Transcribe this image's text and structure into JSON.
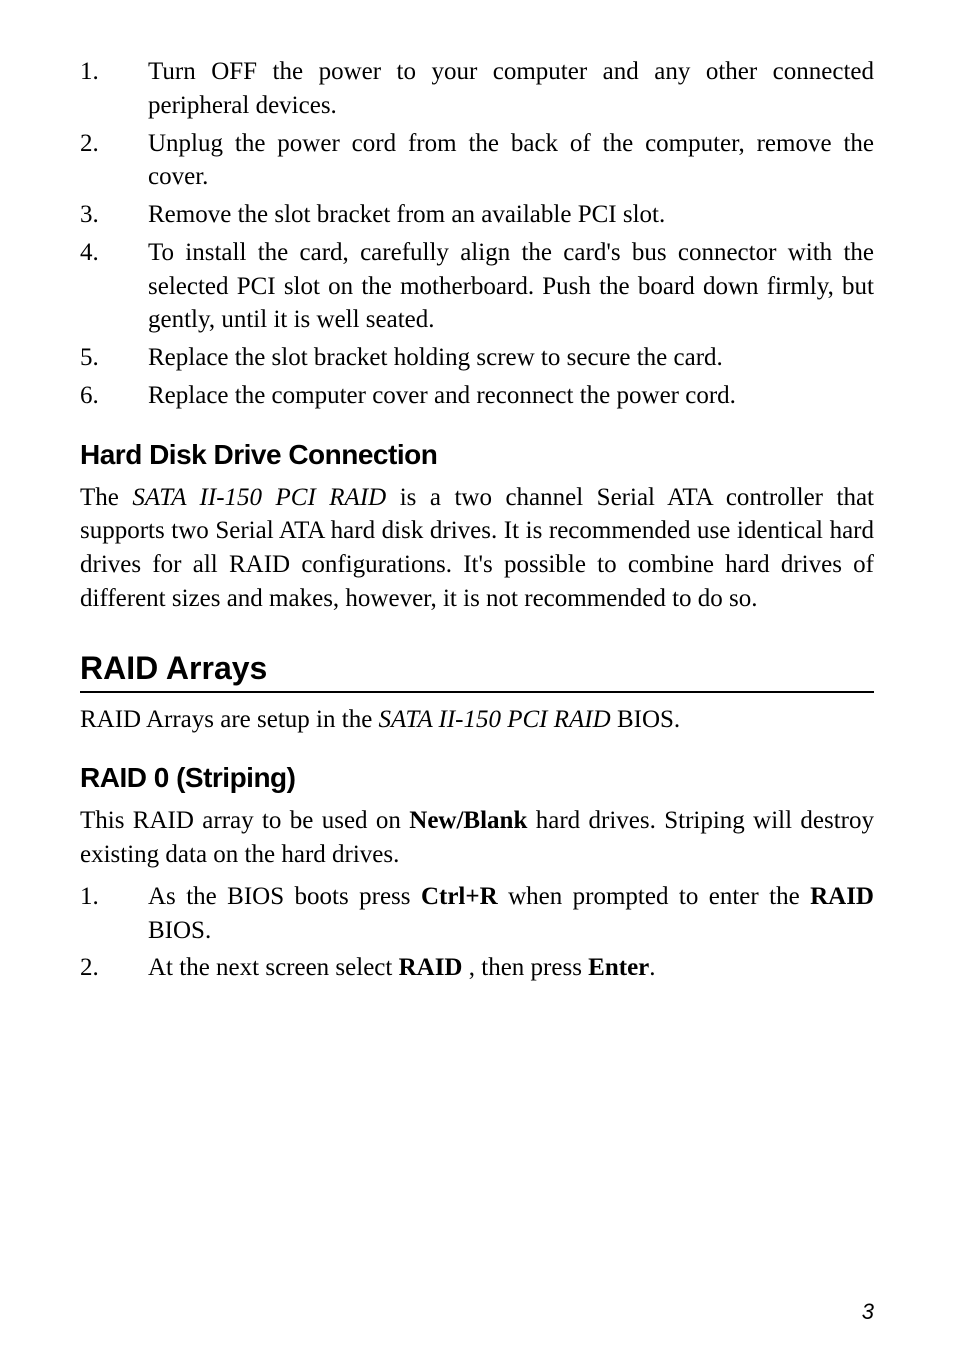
{
  "page": {
    "number": "3",
    "background_color": "#ffffff",
    "text_color": "#000000"
  },
  "install_steps": [
    {
      "n": "1.",
      "text": "Turn OFF the power to your computer and any other connected peripheral devices."
    },
    {
      "n": "2.",
      "text": "Unplug the power cord from the back of the computer, remove the cover."
    },
    {
      "n": "3.",
      "text": "Remove the slot bracket from an available PCI  slot."
    },
    {
      "n": "4.",
      "text": "To install the card, carefully align the card's bus connector with the selected PCI slot on the motherboard. Push the board down firmly, but gently, until it is well seated."
    },
    {
      "n": "5.",
      "text": "Replace the slot bracket holding screw to secure the card."
    },
    {
      "n": "6.",
      "text": "Replace the computer cover and reconnect the power cord."
    }
  ],
  "hdd_section": {
    "heading": "Hard Disk Drive Connection",
    "p_pre": "The ",
    "p_product": "SATA II-150 PCI RAID",
    "p_post": " is a two channel Serial ATA controller that supports two Serial ATA hard disk drives. It is recommended use identical hard drives for all RAID configurations.  It's possible to combine hard drives of different sizes and makes, however, it is not recommended to do so."
  },
  "raid_arrays": {
    "heading": "RAID  Arrays",
    "p_pre": "RAID Arrays are setup in the ",
    "p_product": "SATA II-150 PCI RAID",
    "p_post": " BIOS."
  },
  "raid0": {
    "heading": "RAID 0 (Striping)",
    "p_pre": "This RAID array to be used on ",
    "p_bold": "New/Blank",
    "p_post": " hard drives. Striping will destroy existing data on the hard drives.",
    "steps": [
      {
        "n": "1.",
        "parts": [
          {
            "t": "As the BIOS boots press "
          },
          {
            "t": "Ctrl+R",
            "bold": true
          },
          {
            "t": " when prompted to enter the "
          },
          {
            "t": "RAID",
            "bold": true
          },
          {
            "t": " BIOS."
          }
        ]
      },
      {
        "n": "2.",
        "parts": [
          {
            "t": "At the  next  screen  select "
          },
          {
            "t": "RAID",
            "bold": true
          },
          {
            "t": " , then press "
          },
          {
            "t": "Enter",
            "bold": true
          },
          {
            "t": "."
          }
        ]
      }
    ]
  }
}
